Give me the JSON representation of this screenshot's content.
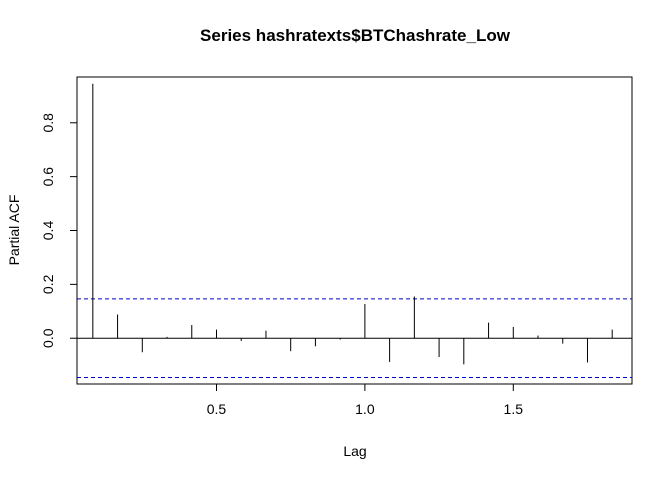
{
  "chart_data": {
    "type": "bar",
    "title": "Series  hashratexts$BTChashrate_Low",
    "xlabel": "Lag",
    "ylabel": "Partial ACF",
    "xlim": [
      0.03,
      1.9
    ],
    "ylim": [
      -0.17,
      0.97
    ],
    "x_ticks": [
      0.5,
      1.0,
      1.5
    ],
    "x_tick_labels": [
      "0.5",
      "1.0",
      "1.5"
    ],
    "y_ticks": [
      0.0,
      0.2,
      0.4,
      0.6,
      0.8
    ],
    "y_tick_labels": [
      "0.0",
      "0.2",
      "0.4",
      "0.6",
      "0.8"
    ],
    "zero_line": 0,
    "confidence_bounds": [
      0.146,
      -0.146
    ],
    "colors": {
      "bars": "#000000",
      "confidence": "#0000cc",
      "frame": "#000000"
    },
    "x": [
      0.0833,
      0.1667,
      0.25,
      0.3333,
      0.4167,
      0.5,
      0.5833,
      0.6667,
      0.75,
      0.8333,
      0.9167,
      1.0,
      1.0833,
      1.1667,
      1.25,
      1.3333,
      1.4167,
      1.5,
      1.5833,
      1.6667,
      1.75,
      1.8333
    ],
    "values": [
      0.945,
      0.088,
      -0.052,
      0.005,
      0.049,
      0.032,
      -0.01,
      0.028,
      -0.048,
      -0.03,
      -0.005,
      0.127,
      -0.088,
      0.155,
      -0.07,
      -0.097,
      0.058,
      0.042,
      0.01,
      -0.02,
      -0.09,
      0.032
    ]
  }
}
